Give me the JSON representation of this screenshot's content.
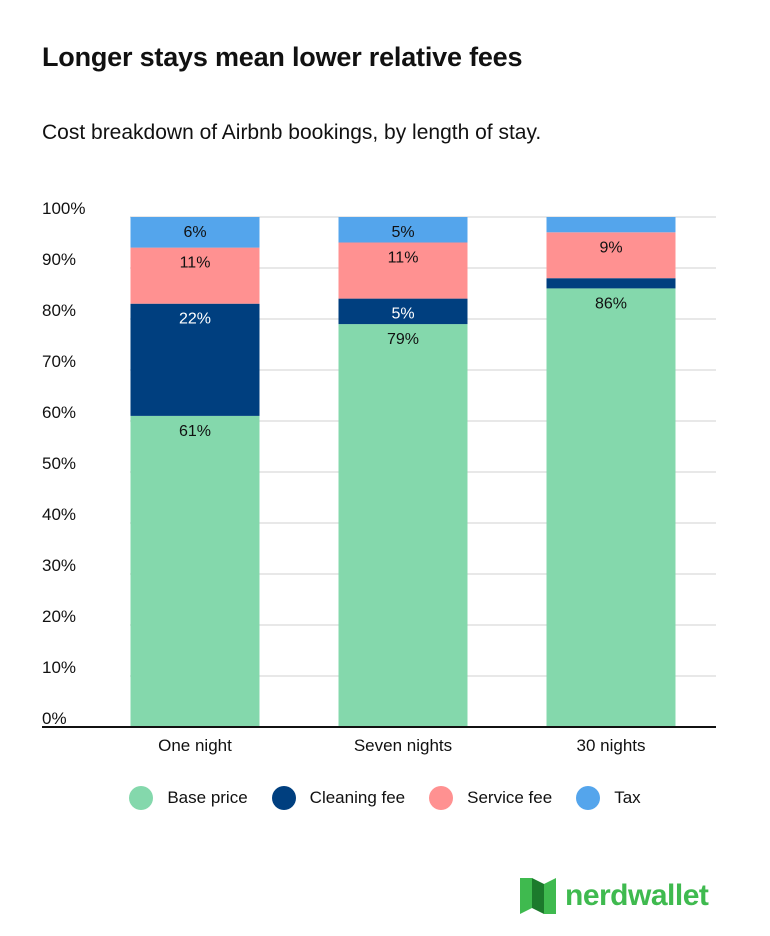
{
  "chart_data": {
    "type": "bar",
    "stacked": true,
    "title": "Longer stays mean lower relative fees",
    "subtitle": "Cost breakdown of Airbnb bookings, by length of stay.",
    "categories": [
      "One night",
      "Seven nights",
      "30 nights"
    ],
    "series": [
      {
        "name": "Base price",
        "color": "#84d8ac",
        "label_color": "#111111",
        "values": [
          61,
          79,
          86
        ],
        "labels": [
          "61%",
          "79%",
          "86%"
        ]
      },
      {
        "name": "Cleaning fee",
        "color": "#003f7f",
        "label_color": "#ffffff",
        "values": [
          22,
          5,
          2
        ],
        "labels": [
          "22%",
          "5%",
          ""
        ]
      },
      {
        "name": "Service fee",
        "color": "#ff9191",
        "label_color": "#111111",
        "values": [
          11,
          11,
          9
        ],
        "labels": [
          "11%",
          "11%",
          "9%"
        ]
      },
      {
        "name": "Tax",
        "color": "#54a5ec",
        "label_color": "#111111",
        "values": [
          6,
          5,
          3
        ],
        "labels": [
          "6%",
          "5%",
          ""
        ]
      }
    ],
    "ylim": [
      0,
      100
    ],
    "yticks": [
      "0%",
      "10%",
      "20%",
      "30%",
      "40%",
      "50%",
      "60%",
      "70%",
      "80%",
      "90%",
      "100%"
    ],
    "grid": true,
    "legend_position": "bottom"
  },
  "legend": [
    {
      "label": "Base price",
      "color": "#84d8ac"
    },
    {
      "label": "Cleaning fee",
      "color": "#003f7f"
    },
    {
      "label": "Service fee",
      "color": "#ff9191"
    },
    {
      "label": "Tax",
      "color": "#54a5ec"
    }
  ],
  "brand": {
    "logo_text": "nerdwallet",
    "logo_icon": "nerdwallet-logo-icon",
    "color": "#3fba4f"
  }
}
